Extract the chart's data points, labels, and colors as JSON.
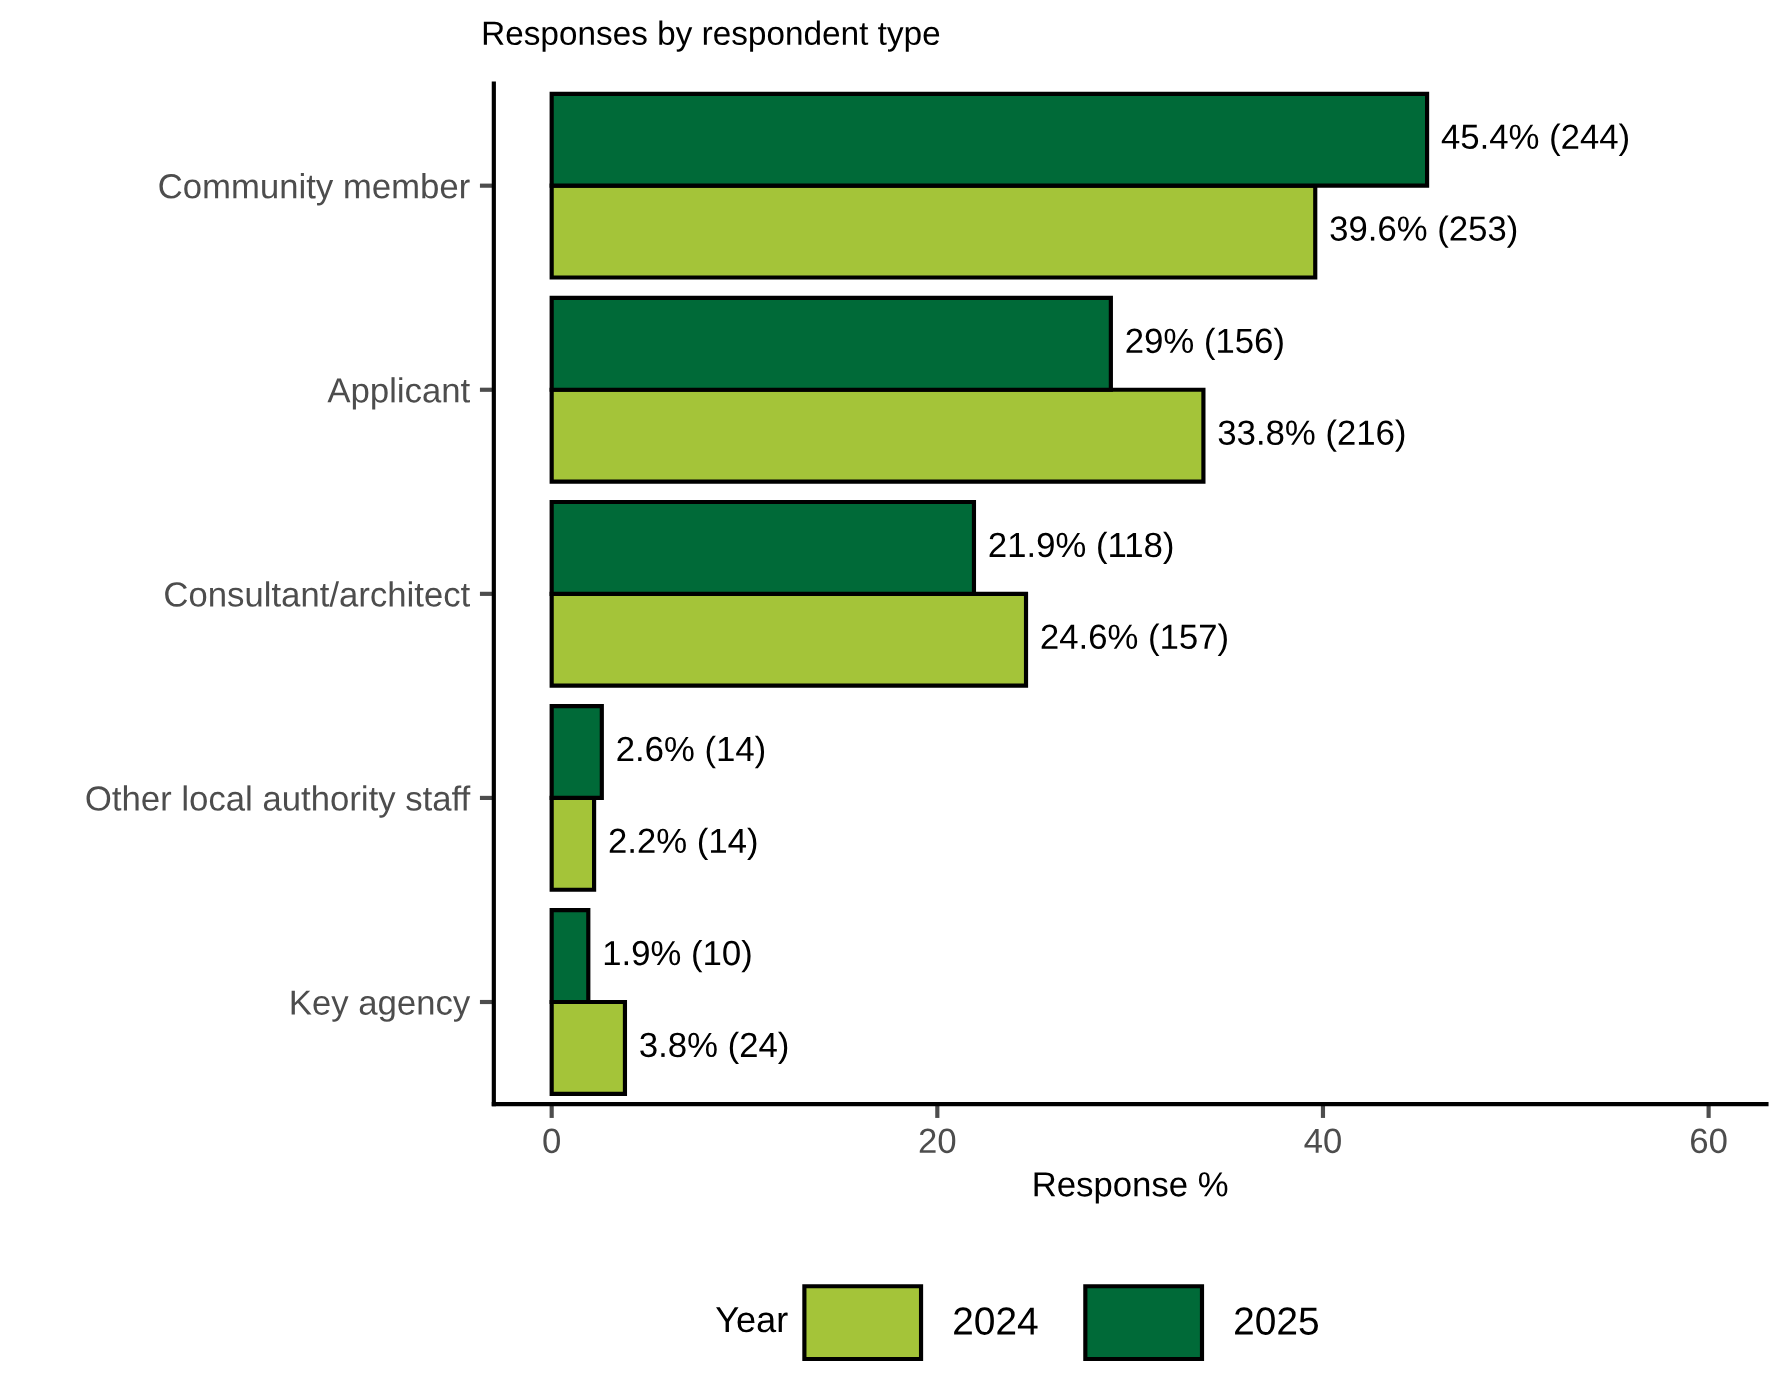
{
  "chart_data": {
    "type": "bar",
    "orientation": "horizontal",
    "title": "Responses by respondent type",
    "xlabel": "Response %",
    "legend_title": "Year",
    "legend": "bottom",
    "categories": [
      "Community member",
      "Applicant",
      "Consultant/architect",
      "Other local authority staff",
      "Key agency"
    ],
    "series": [
      {
        "name": "2024",
        "color": "#a4c439",
        "values": [
          39.6,
          33.8,
          24.6,
          2.2,
          3.8
        ],
        "value_labels": [
          "39.6% (253)",
          "33.8% (216)",
          "24.6% (157)",
          "2.2% (14)",
          "3.8% (24)"
        ]
      },
      {
        "name": "2025",
        "color": "#006a38",
        "values": [
          45.4,
          29,
          21.9,
          2.6,
          1.9
        ],
        "value_labels": [
          "45.4% (244)",
          "29% (156)",
          "21.9% (118)",
          "2.6% (14)",
          "1.9% (10)"
        ]
      }
    ],
    "xlim": [
      -3,
      63
    ],
    "xticks": [
      0,
      20,
      40,
      60
    ],
    "grid": false
  }
}
